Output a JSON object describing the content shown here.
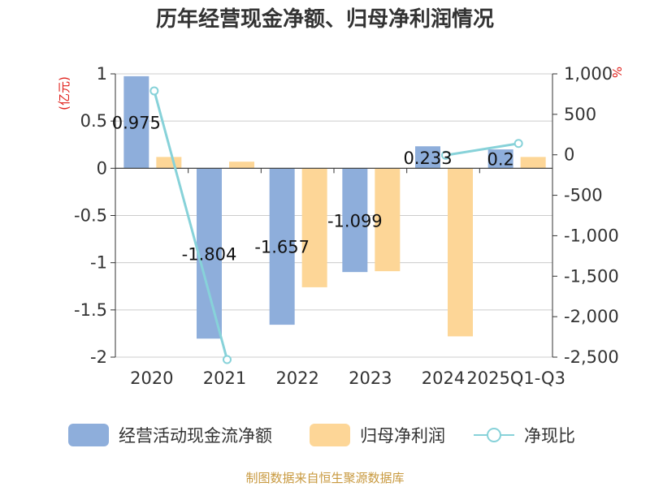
{
  "chart_data": {
    "type": "bar",
    "title": "历年经营现金净额、归母净利润情况",
    "categories": [
      "2020",
      "2021",
      "2022",
      "2023",
      "2024",
      "2025Q1-Q3"
    ],
    "series": [
      {
        "name": "经营活动现金流净额",
        "type": "bar",
        "axis": "left",
        "color": "#8eaedb",
        "values": [
          0.975,
          -1.804,
          -1.657,
          -1.099,
          0.233,
          0.2
        ],
        "labels": [
          "0.975",
          "-1.804",
          "-1.657",
          "-1.099",
          "0.233",
          "0.2"
        ]
      },
      {
        "name": "归母净利润",
        "type": "bar",
        "axis": "left",
        "color": "#fdd697",
        "values": [
          0.12,
          0.07,
          -1.26,
          -1.09,
          -1.78,
          0.12
        ]
      },
      {
        "name": "净现比",
        "type": "line",
        "axis": "right",
        "color": "#87d2d9",
        "values": [
          790,
          -2530,
          null,
          null,
          -5,
          140
        ]
      }
    ],
    "y_left": {
      "unit": "(亿元)",
      "min": -2,
      "max": 1,
      "ticks": [
        1,
        0.5,
        0,
        -0.5,
        -1,
        -1.5,
        -2
      ],
      "tick_labels": [
        "1",
        "0.5",
        "0",
        "-0.5",
        "-1",
        "-1.5",
        "-2"
      ]
    },
    "y_right": {
      "unit": "%",
      "min": -2500,
      "max": 1000,
      "ticks": [
        1000,
        500,
        0,
        -500,
        -1000,
        -1500,
        -2000,
        -2500
      ],
      "tick_labels": [
        "1,000",
        "500",
        "0",
        "-500",
        "-1,000",
        "-1,500",
        "-2,000",
        "-2,500"
      ]
    },
    "grid": true,
    "legend_position": "bottom"
  },
  "source": "制图数据来自恒生聚源数据库",
  "colors": {
    "title": "#333333",
    "unit": "#e0201b",
    "source": "#c8993f",
    "axis": "#333333",
    "grid": "#cccccc"
  }
}
